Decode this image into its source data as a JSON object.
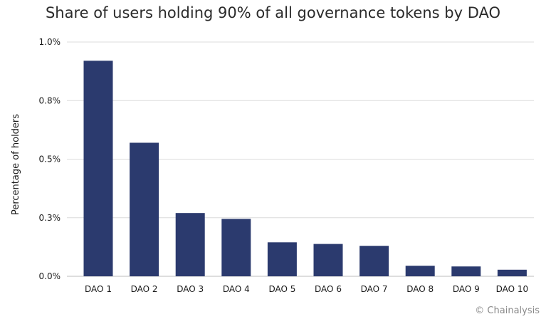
{
  "chart_data": {
    "type": "bar",
    "title": "Share of users holding 90% of all governance tokens by DAO",
    "ylabel": "Percentage of holders",
    "xlabel": "",
    "categories": [
      "DAO 1",
      "DAO 2",
      "DAO 3",
      "DAO 4",
      "DAO 5",
      "DAO 6",
      "DAO 7",
      "DAO 8",
      "DAO 9",
      "DAO 10"
    ],
    "values": [
      0.92,
      0.57,
      0.27,
      0.245,
      0.145,
      0.138,
      0.13,
      0.045,
      0.042,
      0.028
    ],
    "ylim": [
      0,
      1.0
    ],
    "yticks": [
      0,
      0.25,
      0.5,
      0.75,
      1.0
    ],
    "ytick_labels": [
      "0.0%",
      "0.3%",
      "0.5%",
      "0.8%",
      "1.0%"
    ],
    "grid": true,
    "legend": "none",
    "bar_color": "#2b3a6e"
  },
  "credit": "© Chainalysis"
}
